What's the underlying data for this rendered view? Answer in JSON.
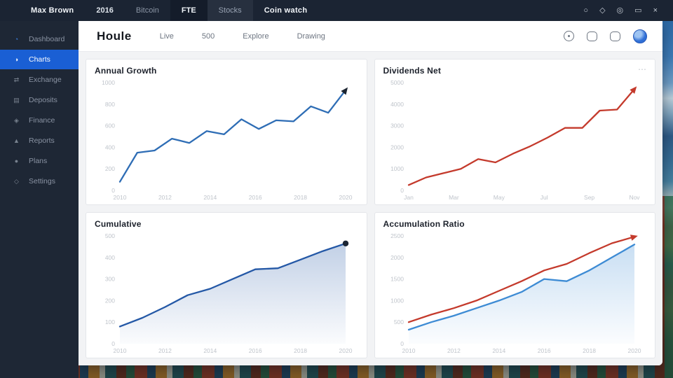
{
  "topbar": {
    "items": [
      {
        "label": "Max Brown"
      },
      {
        "label": "2016"
      },
      {
        "label": "Bitcoin"
      },
      {
        "label": "FTE"
      },
      {
        "label": "Stocks"
      },
      {
        "label": "Coin watch"
      }
    ],
    "window_icons": [
      {
        "name": "shape-icon",
        "glyph": "○"
      },
      {
        "name": "badge-icon",
        "glyph": "◇"
      },
      {
        "name": "view-icon",
        "glyph": "◎"
      },
      {
        "name": "minimize-icon",
        "glyph": "▭"
      },
      {
        "name": "close-icon",
        "glyph": "×"
      }
    ]
  },
  "sidebar": {
    "items": [
      {
        "label": "Dashboard",
        "glyph": "◔"
      },
      {
        "label": "Charts",
        "glyph": "◑"
      },
      {
        "label": "Exchange",
        "glyph": "⇄"
      },
      {
        "label": "Deposits",
        "glyph": "▤"
      },
      {
        "label": "Finance",
        "glyph": "◈"
      },
      {
        "label": "Reports",
        "glyph": "▲"
      },
      {
        "label": "Plans",
        "glyph": "●"
      },
      {
        "label": "Settings",
        "glyph": "◇"
      }
    ],
    "active_index": 1,
    "active_color": "#1a5fd4"
  },
  "header": {
    "logo": "Houle",
    "nav": [
      "Live",
      "500",
      "Explore",
      "Drawing"
    ]
  },
  "colors": {
    "accent_blue": "#2e6db5",
    "accent_red": "#c43a2c",
    "area_blue": "#bcd9f2"
  },
  "chart_data": [
    {
      "type": "line",
      "title": "Annual Growth",
      "ylim": [
        0,
        1000
      ],
      "yticks": [
        "0",
        "200",
        "400",
        "600",
        "800",
        "1000"
      ],
      "xticks": [
        "2010",
        "2012",
        "2014",
        "2016",
        "2018",
        "2020"
      ],
      "menu_icon": false,
      "series": [
        {
          "name": "growth",
          "color": "#2e6db5",
          "arrow": true,
          "arrow_color": "#1b2430",
          "values": [
            80,
            350,
            370,
            480,
            440,
            550,
            520,
            660,
            570,
            650,
            640,
            780,
            720,
            930
          ]
        }
      ]
    },
    {
      "type": "line",
      "title": "Dividends Net",
      "ylim": [
        0,
        5000
      ],
      "yticks": [
        "0",
        "1000",
        "2000",
        "3000",
        "4000",
        "5000"
      ],
      "xticks": [
        "Jan",
        "Mar",
        "May",
        "Jul",
        "Sep",
        "Nov"
      ],
      "menu_icon": true,
      "series": [
        {
          "name": "dividends",
          "color": "#c43a2c",
          "arrow": true,
          "arrow_color": "#c43a2c",
          "values": [
            250,
            600,
            800,
            1000,
            1450,
            1300,
            1700,
            2050,
            2450,
            2900,
            2900,
            3700,
            3750,
            4700
          ]
        }
      ]
    },
    {
      "type": "area",
      "title": "Cumulative",
      "ylim": [
        0,
        500
      ],
      "yticks": [
        "0",
        "100",
        "200",
        "300",
        "400",
        "500"
      ],
      "xticks": [
        "2010",
        "2012",
        "2014",
        "2016",
        "2018",
        "2020"
      ],
      "menu_icon": false,
      "series": [
        {
          "name": "cumulative",
          "color": "#2458a6",
          "area": true,
          "end_dot": true,
          "values": [
            80,
            120,
            170,
            225,
            255,
            300,
            345,
            350,
            390,
            430,
            465
          ]
        }
      ]
    },
    {
      "type": "line",
      "title": "Accumulation Ratio",
      "ylim": [
        0,
        2500
      ],
      "yticks": [
        "0",
        "500",
        "1000",
        "1500",
        "2000",
        "2500"
      ],
      "xticks": [
        "2010",
        "2012",
        "2014",
        "2016",
        "2018",
        "2020"
      ],
      "menu_icon": false,
      "series": [
        {
          "name": "actual",
          "color": "#3d8bd4",
          "area": true,
          "values": [
            325,
            500,
            650,
            825,
            1000,
            1200,
            1500,
            1450,
            1700,
            2000,
            2300
          ]
        },
        {
          "name": "target",
          "color": "#c43a2c",
          "arrow": true,
          "arrow_color": "#c43a2c",
          "values": [
            500,
            675,
            825,
            1000,
            1225,
            1450,
            1700,
            1850,
            2100,
            2330,
            2480
          ]
        }
      ]
    }
  ]
}
